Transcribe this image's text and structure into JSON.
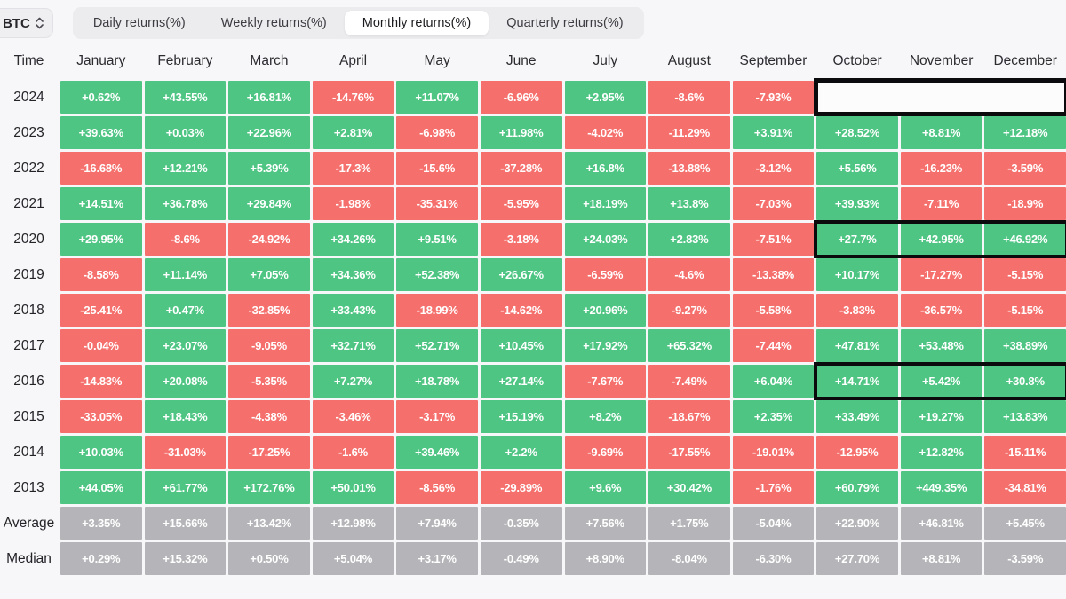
{
  "toolbar": {
    "coin": "BTC",
    "tabs": [
      {
        "label": "Daily returns(%)",
        "active": false
      },
      {
        "label": "Weekly returns(%)",
        "active": false
      },
      {
        "label": "Monthly returns(%)",
        "active": true
      },
      {
        "label": "Quarterly returns(%)",
        "active": false
      }
    ]
  },
  "colors": {
    "positive": "#4ec583",
    "negative": "#f5706d",
    "stat": "#b5b4b8",
    "highlight_border": "#0b0b0d"
  },
  "table": {
    "time_header": "Time",
    "months": [
      "January",
      "February",
      "March",
      "April",
      "May",
      "June",
      "July",
      "August",
      "September",
      "October",
      "November",
      "December"
    ],
    "rows": [
      {
        "label": "2024",
        "type": "year",
        "values": [
          "+0.62%",
          "+43.55%",
          "+16.81%",
          "-14.76%",
          "+11.07%",
          "-6.96%",
          "+2.95%",
          "-8.6%",
          "-7.93%",
          "",
          "",
          ""
        ],
        "empty_box": {
          "start": 9,
          "end": 11
        }
      },
      {
        "label": "2023",
        "type": "year",
        "values": [
          "+39.63%",
          "+0.03%",
          "+22.96%",
          "+2.81%",
          "-6.98%",
          "+11.98%",
          "-4.02%",
          "-11.29%",
          "+3.91%",
          "+28.52%",
          "+8.81%",
          "+12.18%"
        ]
      },
      {
        "label": "2022",
        "type": "year",
        "values": [
          "-16.68%",
          "+12.21%",
          "+5.39%",
          "-17.3%",
          "-15.6%",
          "-37.28%",
          "+16.8%",
          "-13.88%",
          "-3.12%",
          "+5.56%",
          "-16.23%",
          "-3.59%"
        ]
      },
      {
        "label": "2021",
        "type": "year",
        "values": [
          "+14.51%",
          "+36.78%",
          "+29.84%",
          "-1.98%",
          "-35.31%",
          "-5.95%",
          "+18.19%",
          "+13.8%",
          "-7.03%",
          "+39.93%",
          "-7.11%",
          "-18.9%"
        ]
      },
      {
        "label": "2020",
        "type": "year",
        "values": [
          "+29.95%",
          "-8.6%",
          "-24.92%",
          "+34.26%",
          "+9.51%",
          "-3.18%",
          "+24.03%",
          "+2.83%",
          "-7.51%",
          "+27.7%",
          "+42.95%",
          "+46.92%"
        ],
        "highlight": {
          "start": 9,
          "end": 11
        }
      },
      {
        "label": "2019",
        "type": "year",
        "values": [
          "-8.58%",
          "+11.14%",
          "+7.05%",
          "+34.36%",
          "+52.38%",
          "+26.67%",
          "-6.59%",
          "-4.6%",
          "-13.38%",
          "+10.17%",
          "-17.27%",
          "-5.15%"
        ]
      },
      {
        "label": "2018",
        "type": "year",
        "values": [
          "-25.41%",
          "+0.47%",
          "-32.85%",
          "+33.43%",
          "-18.99%",
          "-14.62%",
          "+20.96%",
          "-9.27%",
          "-5.58%",
          "-3.83%",
          "-36.57%",
          "-5.15%"
        ]
      },
      {
        "label": "2017",
        "type": "year",
        "values": [
          "-0.04%",
          "+23.07%",
          "-9.05%",
          "+32.71%",
          "+52.71%",
          "+10.45%",
          "+17.92%",
          "+65.32%",
          "-7.44%",
          "+47.81%",
          "+53.48%",
          "+38.89%"
        ]
      },
      {
        "label": "2016",
        "type": "year",
        "values": [
          "-14.83%",
          "+20.08%",
          "-5.35%",
          "+7.27%",
          "+18.78%",
          "+27.14%",
          "-7.67%",
          "-7.49%",
          "+6.04%",
          "+14.71%",
          "+5.42%",
          "+30.8%"
        ],
        "highlight": {
          "start": 9,
          "end": 11
        }
      },
      {
        "label": "2015",
        "type": "year",
        "values": [
          "-33.05%",
          "+18.43%",
          "-4.38%",
          "-3.46%",
          "-3.17%",
          "+15.19%",
          "+8.2%",
          "-18.67%",
          "+2.35%",
          "+33.49%",
          "+19.27%",
          "+13.83%"
        ]
      },
      {
        "label": "2014",
        "type": "year",
        "values": [
          "+10.03%",
          "-31.03%",
          "-17.25%",
          "-1.6%",
          "+39.46%",
          "+2.2%",
          "-9.69%",
          "-17.55%",
          "-19.01%",
          "-12.95%",
          "+12.82%",
          "-15.11%"
        ]
      },
      {
        "label": "2013",
        "type": "year",
        "values": [
          "+44.05%",
          "+61.77%",
          "+172.76%",
          "+50.01%",
          "-8.56%",
          "-29.89%",
          "+9.6%",
          "+30.42%",
          "-1.76%",
          "+60.79%",
          "+449.35%",
          "-34.81%"
        ]
      },
      {
        "label": "Average",
        "type": "stat",
        "values": [
          "+3.35%",
          "+15.66%",
          "+13.42%",
          "+12.98%",
          "+7.94%",
          "-0.35%",
          "+7.56%",
          "+1.75%",
          "-5.04%",
          "+22.90%",
          "+46.81%",
          "+5.45%"
        ]
      },
      {
        "label": "Median",
        "type": "stat",
        "values": [
          "+0.29%",
          "+15.32%",
          "+0.50%",
          "+5.04%",
          "+3.17%",
          "-0.49%",
          "+8.90%",
          "-8.04%",
          "-6.30%",
          "+27.70%",
          "+8.81%",
          "-3.59%"
        ]
      }
    ]
  }
}
